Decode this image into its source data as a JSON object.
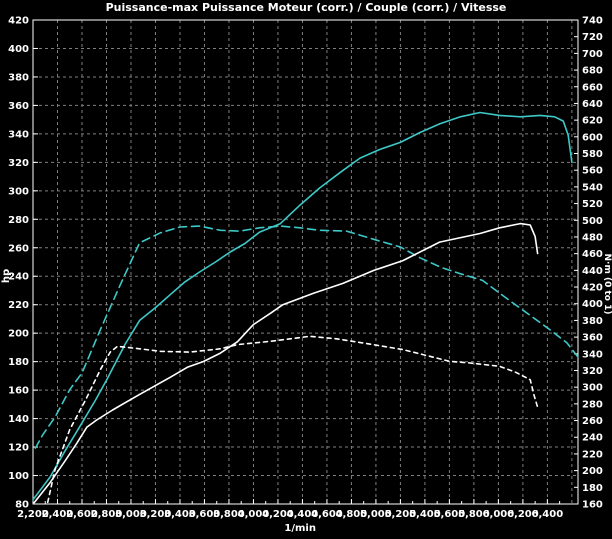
{
  "title": "Puissance-max Puissance Moteur (corr.) / Couple (corr.) / Vitesse",
  "colors": {
    "background": "#000000",
    "frame": "#ffffff",
    "grid": "#7f7f7f",
    "cyan": "#3fc8c8",
    "white": "#ffffff",
    "text": "#ffffff"
  },
  "chart_data": {
    "type": "line",
    "title": "Puissance-max Puissance Moteur (corr.) / Couple (corr.) / Vitesse",
    "grid": "dashed",
    "legend": "none",
    "x_axis": {
      "label": "1/min",
      "min": 2200,
      "max": 6650,
      "tick_from": 2200,
      "tick_to": 6400,
      "tick_step": 200,
      "minor_step": 100,
      "thousands_separator": ","
    },
    "y_axis_left": {
      "label": "hp",
      "min": 80,
      "max": 420,
      "tick_step": 20
    },
    "y_axis_right": {
      "label": "N·m (0 to 1)",
      "min": 160,
      "max": 740,
      "tick_step": 20
    },
    "series": [
      {
        "name": "puissance-moteur-corr-run2",
        "channel": "Puissance Moteur (corr.)",
        "axis": "left",
        "unit": "hp",
        "color": "#3fc8c8",
        "dash": "none",
        "peak": {
          "rpm": 5850,
          "value": 355
        },
        "points": [
          [
            2200,
            83
          ],
          [
            2340,
            99
          ],
          [
            2460,
            117
          ],
          [
            2580,
            134
          ],
          [
            2710,
            153
          ],
          [
            2800,
            167
          ],
          [
            2950,
            192
          ],
          [
            3070,
            209
          ],
          [
            3200,
            218
          ],
          [
            3320,
            227
          ],
          [
            3440,
            236
          ],
          [
            3560,
            243
          ],
          [
            3690,
            250
          ],
          [
            3810,
            257
          ],
          [
            3930,
            263
          ],
          [
            4050,
            271
          ],
          [
            4220,
            277
          ],
          [
            4380,
            290
          ],
          [
            4540,
            302
          ],
          [
            4710,
            313
          ],
          [
            4870,
            323
          ],
          [
            5030,
            329
          ],
          [
            5200,
            334
          ],
          [
            5360,
            341
          ],
          [
            5520,
            347
          ],
          [
            5690,
            352
          ],
          [
            5850,
            355
          ],
          [
            6010,
            353
          ],
          [
            6180,
            352
          ],
          [
            6340,
            353
          ],
          [
            6460,
            352
          ],
          [
            6530,
            349
          ],
          [
            6570,
            339
          ],
          [
            6600,
            320
          ]
        ]
      },
      {
        "name": "couple-corr-run2",
        "channel": "Couple (corr.)",
        "axis": "right",
        "unit": "N·m",
        "color": "#3fc8c8",
        "dash": "8,5",
        "peak": {
          "rpm": 4220,
          "value": 493
        },
        "points": [
          [
            2220,
            227
          ],
          [
            2280,
            243
          ],
          [
            2380,
            264
          ],
          [
            2500,
            297
          ],
          [
            2600,
            317
          ],
          [
            2750,
            369
          ],
          [
            2910,
            422
          ],
          [
            3070,
            473
          ],
          [
            3240,
            485
          ],
          [
            3400,
            492
          ],
          [
            3560,
            493
          ],
          [
            3730,
            488
          ],
          [
            3890,
            487
          ],
          [
            4050,
            491
          ],
          [
            4220,
            493
          ],
          [
            4380,
            491
          ],
          [
            4540,
            488
          ],
          [
            4760,
            487
          ],
          [
            5010,
            476
          ],
          [
            5200,
            468
          ],
          [
            5360,
            455
          ],
          [
            5540,
            443
          ],
          [
            5690,
            436
          ],
          [
            5870,
            428
          ],
          [
            6090,
            404
          ],
          [
            6260,
            386
          ],
          [
            6420,
            369
          ],
          [
            6560,
            353
          ],
          [
            6650,
            336
          ]
        ]
      },
      {
        "name": "puissance-moteur-corr-run1",
        "channel": "Puissance Moteur (corr.)",
        "axis": "left",
        "unit": "hp",
        "color": "#ffffff",
        "dash": "none",
        "peak": {
          "rpm": 6180,
          "value": 277
        },
        "points": [
          [
            2210,
            81
          ],
          [
            2340,
            95
          ],
          [
            2460,
            110
          ],
          [
            2560,
            123
          ],
          [
            2640,
            134
          ],
          [
            2720,
            139
          ],
          [
            2850,
            146
          ],
          [
            3070,
            157
          ],
          [
            3320,
            169
          ],
          [
            3460,
            176
          ],
          [
            3590,
            180
          ],
          [
            3730,
            186
          ],
          [
            3870,
            194
          ],
          [
            4000,
            206
          ],
          [
            4140,
            214
          ],
          [
            4240,
            220
          ],
          [
            4490,
            228
          ],
          [
            4730,
            235
          ],
          [
            4980,
            244
          ],
          [
            5220,
            251
          ],
          [
            5520,
            264
          ],
          [
            5850,
            270
          ],
          [
            6010,
            274
          ],
          [
            6180,
            277
          ],
          [
            6260,
            276
          ],
          [
            6300,
            268
          ],
          [
            6320,
            256
          ]
        ]
      },
      {
        "name": "couple-corr-run1",
        "channel": "Couple (corr.)",
        "axis": "right",
        "unit": "N·m",
        "color": "#ffffff",
        "dash": "4,4",
        "peak": {
          "rpm": 4460,
          "value": 361
        },
        "points": [
          [
            2320,
            162
          ],
          [
            2380,
            201
          ],
          [
            2500,
            249
          ],
          [
            2630,
            285
          ],
          [
            2750,
            321
          ],
          [
            2830,
            342
          ],
          [
            2890,
            349
          ],
          [
            3070,
            346
          ],
          [
            3240,
            343
          ],
          [
            3480,
            342
          ],
          [
            3730,
            346
          ],
          [
            3870,
            351
          ],
          [
            4140,
            355
          ],
          [
            4460,
            361
          ],
          [
            4680,
            358
          ],
          [
            4850,
            354
          ],
          [
            5060,
            349
          ],
          [
            5220,
            345
          ],
          [
            5440,
            337
          ],
          [
            5600,
            331
          ],
          [
            5770,
            329
          ],
          [
            6010,
            325
          ],
          [
            6140,
            318
          ],
          [
            6260,
            309
          ],
          [
            6290,
            291
          ],
          [
            6320,
            276
          ]
        ]
      }
    ]
  }
}
